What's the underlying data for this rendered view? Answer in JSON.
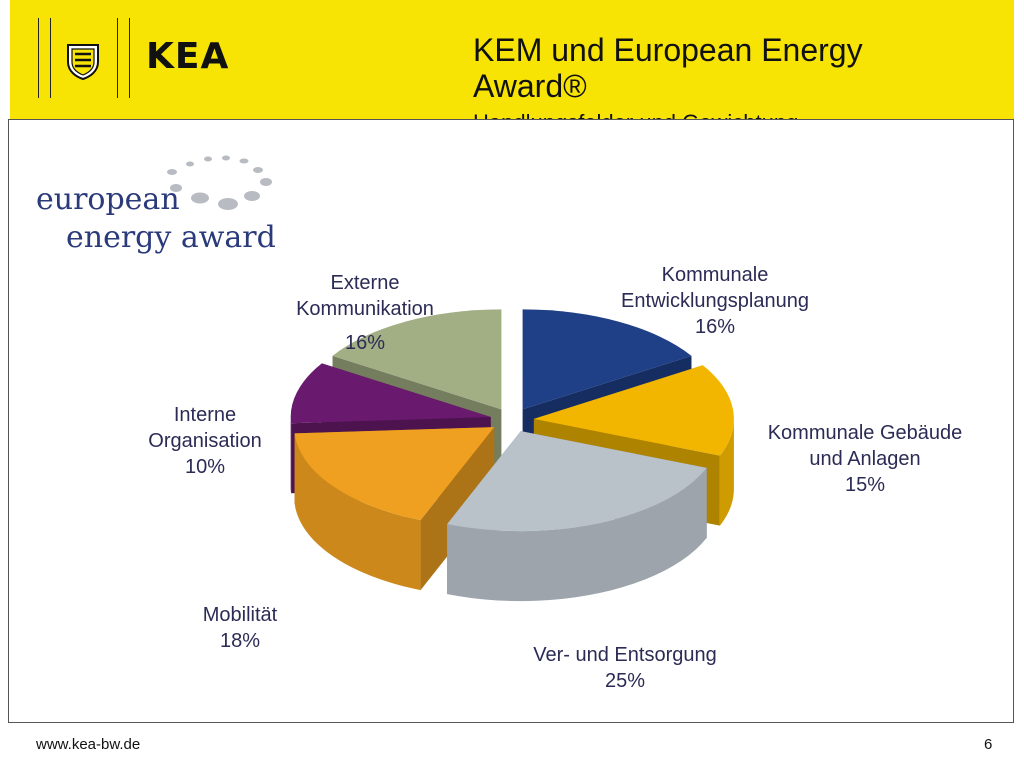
{
  "header": {
    "brand": "KEA",
    "title": "KEM und European Energy Award®",
    "subtitle": "Handlungsfelder und Gewichtung"
  },
  "logo": {
    "line1": "european",
    "line2": "energy award"
  },
  "chart_data": {
    "type": "pie",
    "title": "",
    "unit": "%",
    "slices": [
      {
        "name": "Kommunale Entwicklungsplanung",
        "label_lines": [
          "Kommunale",
          "Entwicklungsplanung"
        ],
        "value": 16,
        "value_label": "16%",
        "color": "#1f3f87"
      },
      {
        "name": "Kommunale Gebäude und Anlagen",
        "label_lines": [
          "Kommunale Gebäude",
          "und Anlagen"
        ],
        "value": 15,
        "value_label": "15%",
        "color": "#f2b600"
      },
      {
        "name": "Ver- und Entsorgung",
        "label_lines": [
          "Ver- und Entsorgung"
        ],
        "value": 25,
        "value_label": "25%",
        "color": "#b9c1c9"
      },
      {
        "name": "Mobilität",
        "label_lines": [
          "Mobilität"
        ],
        "value": 18,
        "value_label": "18%",
        "color": "#f0a020"
      },
      {
        "name": "Interne Organisation",
        "label_lines": [
          "Interne",
          "Organisation"
        ],
        "value": 10,
        "value_label": "10%",
        "color": "#6a1a6e"
      },
      {
        "name": "Externe Kommunikation",
        "label_lines": [
          "Externe",
          "Kommunikation"
        ],
        "value": 16,
        "value_label": "16%",
        "color": "#a2ae84"
      }
    ]
  },
  "footer": {
    "url": "www.kea-bw.de",
    "page": "6"
  }
}
